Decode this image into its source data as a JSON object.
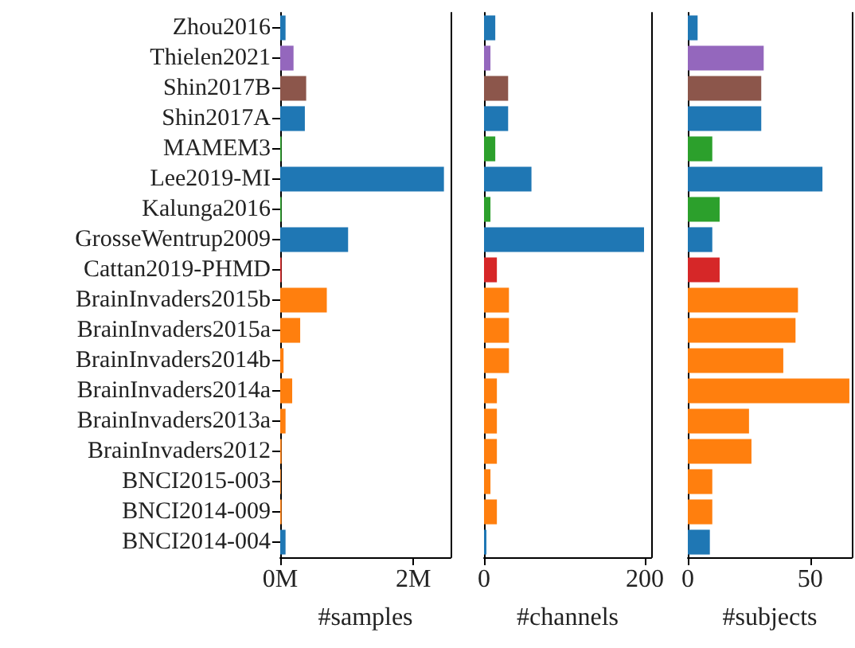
{
  "chart_data": [
    {
      "type": "bar",
      "orientation": "horizontal",
      "xlabel": "#samples",
      "categories": [
        "Zhou2016",
        "Thielen2021",
        "Shin2017B",
        "Shin2017A",
        "MAMEM3",
        "Lee2019-MI",
        "Kalunga2016",
        "GrosseWentrup2009",
        "Cattan2019-PHMD",
        "BrainInvaders2015b",
        "BrainInvaders2015a",
        "BrainInvaders2014b",
        "BrainInvaders2014a",
        "BrainInvaders2013a",
        "BrainInvaders2012",
        "BNCI2015-003",
        "BNCI2014-009",
        "BNCI2014-004"
      ],
      "values": [
        0.08,
        0.2,
        0.39,
        0.37,
        0.02,
        2.46,
        0.02,
        1.02,
        0.02,
        0.7,
        0.3,
        0.05,
        0.18,
        0.08,
        0.02,
        0.01,
        0.02,
        0.08
      ],
      "colors": [
        "#1f77b4",
        "#9467bd",
        "#8c564b",
        "#1f77b4",
        "#2ca02c",
        "#1f77b4",
        "#2ca02c",
        "#1f77b4",
        "#d62728",
        "#ff7f0e",
        "#ff7f0e",
        "#ff7f0e",
        "#ff7f0e",
        "#ff7f0e",
        "#ff7f0e",
        "#ff7f0e",
        "#ff7f0e",
        "#1f77b4"
      ],
      "xlim": [
        0,
        2.56
      ],
      "xticks": [
        {
          "value": 0,
          "label": "0M"
        },
        {
          "value": 2,
          "label": "2M"
        }
      ]
    },
    {
      "type": "bar",
      "orientation": "horizontal",
      "xlabel": "#channels",
      "tick_labels": "x",
      "categories": [
        null,
        null,
        null,
        null,
        null,
        null,
        null,
        null,
        null,
        null,
        null,
        null,
        null,
        null,
        null,
        null,
        null,
        null
      ],
      "values": [
        14,
        8,
        30,
        30,
        14,
        59,
        8,
        199,
        16,
        31,
        31,
        31,
        16,
        16,
        16,
        8,
        16,
        3
      ],
      "colors": [
        "#1f77b4",
        "#9467bd",
        "#8c564b",
        "#1f77b4",
        "#2ca02c",
        "#1f77b4",
        "#2ca02c",
        "#1f77b4",
        "#d62728",
        "#ff7f0e",
        "#ff7f0e",
        "#ff7f0e",
        "#ff7f0e",
        "#ff7f0e",
        "#ff7f0e",
        "#ff7f0e",
        "#ff7f0e",
        "#1f77b4"
      ],
      "xlim": [
        0,
        208
      ],
      "xticks": [
        0,
        200
      ]
    },
    {
      "type": "bar",
      "orientation": "horizontal",
      "xlabel": "#subjects",
      "tick_labels": "x",
      "categories": [
        null,
        null,
        null,
        null,
        null,
        null,
        null,
        null,
        null,
        null,
        null,
        null,
        null,
        null,
        null,
        null,
        null,
        null
      ],
      "values": [
        4,
        31,
        30,
        30,
        10,
        55,
        13,
        10,
        13,
        45,
        44,
        39,
        66,
        25,
        26,
        10,
        10,
        9
      ],
      "colors": [
        "#1f77b4",
        "#9467bd",
        "#8c564b",
        "#1f77b4",
        "#2ca02c",
        "#1f77b4",
        "#2ca02c",
        "#1f77b4",
        "#d62728",
        "#ff7f0e",
        "#ff7f0e",
        "#ff7f0e",
        "#ff7f0e",
        "#ff7f0e",
        "#ff7f0e",
        "#ff7f0e",
        "#ff7f0e",
        "#1f77b4"
      ],
      "xlim": [
        0,
        67
      ],
      "xticks": [
        0,
        50
      ]
    }
  ]
}
